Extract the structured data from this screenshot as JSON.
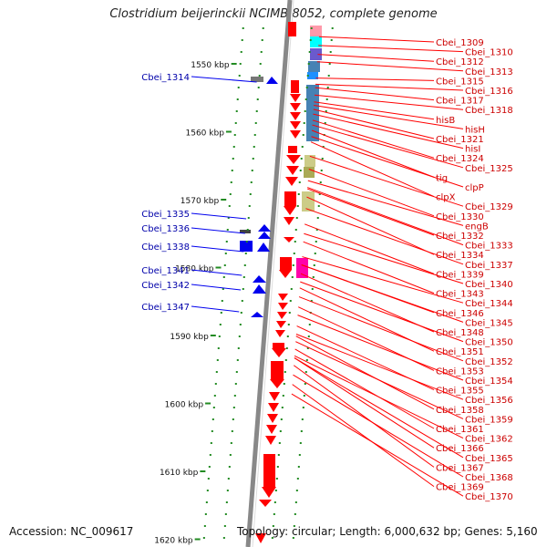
{
  "title": "Clostridium beijerinckii NCIMB 8052, complete genome",
  "accession": "Accession: NC_009617",
  "topology": "Topology: circular; Length: 6,000,632 bp; Genes: 5,160",
  "colors": {
    "forward": "#ff0000",
    "reverse": "#0000ee",
    "axis": "#888888",
    "tick": "#228b22"
  },
  "scale": {
    "labels": [
      {
        "kbp": 1550,
        "text": "1550 kbp"
      },
      {
        "kbp": 1560,
        "text": "1560 kbp"
      },
      {
        "kbp": 1570,
        "text": "1570 kbp"
      },
      {
        "kbp": 1580,
        "text": "1580 kbp"
      },
      {
        "kbp": 1590,
        "text": "1590 kbp"
      },
      {
        "kbp": 1600,
        "text": "1600 kbp"
      },
      {
        "kbp": 1610,
        "text": "1610 kbp"
      },
      {
        "kbp": 1620,
        "text": "1620 kbp"
      }
    ]
  },
  "genes_reverse": [
    {
      "name": "Cbei_1314",
      "kbp": 1550.6
    },
    {
      "name": "Cbei_1335",
      "kbp": 1572.4
    },
    {
      "name": "Cbei_1336",
      "kbp": 1573.8
    },
    {
      "name": "Cbei_1338",
      "kbp": 1575.6
    },
    {
      "name": "Cbei_1341",
      "kbp": 1579.5
    },
    {
      "name": "Cbei_1342",
      "kbp": 1580.7
    },
    {
      "name": "Cbei_1347",
      "kbp": 1583.5
    }
  ],
  "genes_forward": [
    {
      "name": "Cbei_1309",
      "kbp": 1546.0
    },
    {
      "name": "Cbei_1310",
      "kbp": 1547.3
    },
    {
      "name": "Cbei_1312",
      "kbp": 1548.6
    },
    {
      "name": "Cbei_1313",
      "kbp": 1549.7
    },
    {
      "name": "Cbei_1315",
      "kbp": 1552.1
    },
    {
      "name": "Cbei_1316",
      "kbp": 1553.0
    },
    {
      "name": "Cbei_1317",
      "kbp": 1553.5
    },
    {
      "name": "Cbei_1318",
      "kbp": 1554.6
    },
    {
      "name": "hisB",
      "kbp": 1555.6
    },
    {
      "name": "hisH",
      "kbp": 1556.1
    },
    {
      "name": "Cbei_1321",
      "kbp": 1556.7
    },
    {
      "name": "hisI",
      "kbp": 1557.4
    },
    {
      "name": "Cbei_1324",
      "kbp": 1558.3
    },
    {
      "name": "Cbei_1325",
      "kbp": 1559.0
    },
    {
      "name": "tig",
      "kbp": 1559.8
    },
    {
      "name": "clpP",
      "kbp": 1560.7
    },
    {
      "name": "clpX",
      "kbp": 1561.5
    },
    {
      "name": "Cbei_1329",
      "kbp": 1563.6
    },
    {
      "name": "Cbei_1330",
      "kbp": 1565.5
    },
    {
      "name": "engB",
      "kbp": 1567.2
    },
    {
      "name": "Cbei_1332",
      "kbp": 1568.4
    },
    {
      "name": "Cbei_1333",
      "kbp": 1568.2
    },
    {
      "name": "Cbei_1334",
      "kbp": 1569.6
    },
    {
      "name": "Cbei_1337",
      "kbp": 1571.3
    },
    {
      "name": "Cbei_1339",
      "kbp": 1573.6
    },
    {
      "name": "Cbei_1340",
      "kbp": 1575.0
    },
    {
      "name": "Cbei_1343",
      "kbp": 1576.2
    },
    {
      "name": "Cbei_1344",
      "kbp": 1578.4
    },
    {
      "name": "Cbei_1346",
      "kbp": 1579.6
    },
    {
      "name": "Cbei_1345",
      "kbp": 1579.6
    },
    {
      "name": "Cbei_1348",
      "kbp": 1580.9
    },
    {
      "name": "Cbei_1350",
      "kbp": 1582.1
    },
    {
      "name": "Cbei_1351",
      "kbp": 1583.0
    },
    {
      "name": "Cbei_1352",
      "kbp": 1584.3
    },
    {
      "name": "Cbei_1353",
      "kbp": 1585.8
    },
    {
      "name": "Cbei_1354",
      "kbp": 1587.0
    },
    {
      "name": "Cbei_1355",
      "kbp": 1588.6
    },
    {
      "name": "Cbei_1356",
      "kbp": 1589.8
    },
    {
      "name": "Cbei_1358",
      "kbp": 1590.1
    },
    {
      "name": "Cbei_1359",
      "kbp": 1590.9
    },
    {
      "name": "Cbei_1361",
      "kbp": 1592.0
    },
    {
      "name": "Cbei_1362",
      "kbp": 1593.0
    },
    {
      "name": "Cbei_1366",
      "kbp": 1593.3
    },
    {
      "name": "Cbei_1365",
      "kbp": 1593.3
    },
    {
      "name": "Cbei_1367",
      "kbp": 1594.4
    },
    {
      "name": "Cbei_1368",
      "kbp": 1595.8
    },
    {
      "name": "Cbei_1369",
      "kbp": 1597.2
    },
    {
      "name": "Cbei_1370",
      "kbp": 1598.6
    }
  ]
}
